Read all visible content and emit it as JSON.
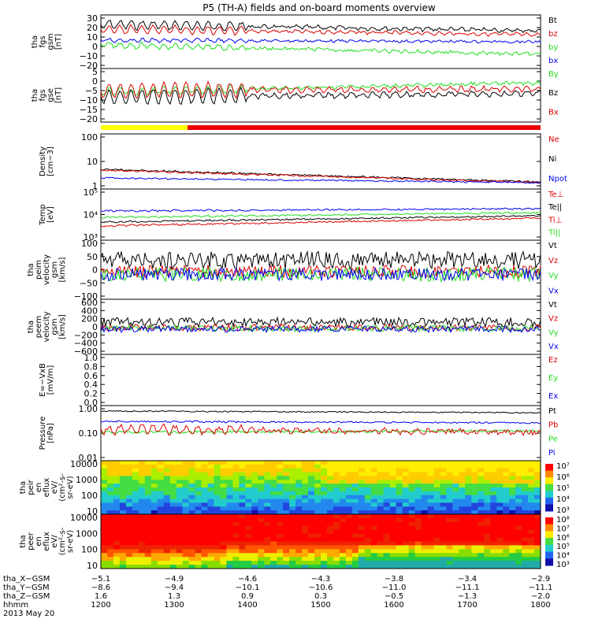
{
  "title": "P5 (TH-A) fields and on-board moments overview",
  "colors": {
    "black": "#000000",
    "red": "#dd0000",
    "green": "#22dd22",
    "blue": "#0000ee",
    "yellow": "#ffff00",
    "barRed": "#ee0000"
  },
  "chart_data": {
    "type": "line",
    "panels": [
      {
        "id": "fgs_gsm",
        "ylabel": [
          "tha",
          "fgs",
          "gsm",
          "[nT]"
        ],
        "ylim": [
          -30,
          30
        ],
        "yticks": [
          "30",
          "20",
          "10",
          "0",
          "−10",
          "−20"
        ],
        "series": [
          {
            "name": "Bt",
            "color": "red-hint",
            "base": 18
          },
          {
            "name": "bz",
            "base": 10
          },
          {
            "name": "by",
            "base": -6
          },
          {
            "name": "bx",
            "base": 3
          }
        ],
        "legend": [
          "Bt",
          "bz",
          "by",
          "bx"
        ]
      },
      {
        "id": "fgs_gse",
        "ylabel": [
          "tha",
          "fgs",
          "gse",
          "[nT]"
        ],
        "ylim": [
          -22,
          6
        ],
        "yticks": [
          "5",
          "0",
          "−5",
          "−10",
          "−15",
          "−20"
        ],
        "legend": [
          "By",
          "Bz",
          "Bx"
        ]
      },
      {
        "id": "density",
        "ylabel": [
          "Density",
          "[cm−3]"
        ],
        "scale": "log",
        "ylim": [
          0.1,
          300
        ],
        "yticks": [
          "100",
          "10",
          "1"
        ],
        "legend": [
          "Ne",
          "Ni",
          "Npot"
        ]
      },
      {
        "id": "temp",
        "ylabel": [
          "Temp",
          "[eV]"
        ],
        "scale": "log",
        "ylim": [
          100,
          100000
        ],
        "yticks": [
          "10⁵",
          "10⁴",
          "10³"
        ],
        "legend": [
          "Te⊥",
          "Te||",
          "Ti⊥",
          "Ti||"
        ]
      },
      {
        "id": "peim",
        "ylabel": [
          "tha",
          "peim",
          "velocity",
          "gsm",
          "[km/s]"
        ],
        "ylim": [
          -100,
          100
        ],
        "yticks": [
          "100",
          "50",
          "0",
          "−50",
          "−100"
        ],
        "legend": [
          "Vt",
          "Vz",
          "Vy",
          "Vx"
        ]
      },
      {
        "id": "peem",
        "ylabel": [
          "tha",
          "peem",
          "velocity",
          "gsm",
          "[km/s]"
        ],
        "ylim": [
          -600,
          600
        ],
        "yticks": [
          "600",
          "400",
          "200",
          "0",
          "−200",
          "−400",
          "−600"
        ],
        "legend": [
          "Vt",
          "Vz",
          "Vy",
          "Vx"
        ]
      },
      {
        "id": "efield",
        "ylabel": [
          "E=−VxB",
          "[mV/m]"
        ],
        "ylim": [
          0,
          1
        ],
        "yticks": [
          "1.0",
          "0.8",
          "0.6",
          "0.4",
          "0.2",
          "0.0"
        ],
        "legend": [
          "Ez",
          "Ey",
          "Ex"
        ]
      },
      {
        "id": "pressure",
        "ylabel": [
          "Pressure",
          "[nPa]"
        ],
        "scale": "log",
        "ylim": [
          0.01,
          1.2
        ],
        "yticks": [
          "1.00",
          "0.10",
          "0.01"
        ],
        "legend": [
          "Pt",
          "Pb",
          "Pe",
          "Pi"
        ]
      },
      {
        "id": "peir",
        "ylabel": [
          "tha",
          "peir",
          "en",
          "eflux",
          "eV/",
          "(cm²-s-",
          "sr-eV)"
        ],
        "type": "heatmap",
        "ylim": [
          10,
          20000
        ],
        "yticks": [
          "10000",
          "1000",
          "100",
          "10"
        ],
        "colorbar": [
          "10⁷",
          "10⁶",
          "10⁵",
          "10⁴",
          "10³"
        ]
      },
      {
        "id": "peer",
        "ylabel": [
          "tha",
          "peer",
          "en",
          "eflux",
          "eV/",
          "(cm²-s-",
          "sr-eV)"
        ],
        "type": "heatmap",
        "ylim": [
          10,
          20000
        ],
        "yticks": [
          "10000",
          "1000",
          "100",
          "10"
        ],
        "colorbar": [
          "10⁸",
          "10⁷",
          "10⁶",
          "10⁵",
          "10⁴",
          "10³"
        ]
      }
    ],
    "xaxis": {
      "rows": [
        {
          "label": "tha_X−GSM",
          "values": [
            "−5.1",
            "−4.9",
            "−4.6",
            "−4.3",
            "−3.8",
            "−3.4",
            "−2.9"
          ]
        },
        {
          "label": "tha_Y−GSM",
          "values": [
            "−8.6",
            "−9.4",
            "−10.1",
            "−10.6",
            "−11.0",
            "−11.1",
            "−11.1"
          ]
        },
        {
          "label": "tha_Z−GSM",
          "values": [
            "1.6",
            "1.3",
            "0.9",
            "0.3",
            "−0.5",
            "−1.3",
            "−2.0"
          ]
        },
        {
          "label": "hhmm",
          "values": [
            "1200",
            "1300",
            "1400",
            "1500",
            "1600",
            "1700",
            "1800"
          ]
        }
      ],
      "date": "2013 May 20"
    }
  },
  "legend_colors": {
    "fgs_gsm": [
      "black",
      "red",
      "green",
      "blue"
    ],
    "fgs_gse": [
      "green",
      "black",
      "red"
    ],
    "density": [
      "red",
      "black",
      "blue"
    ],
    "temp": [
      "red",
      "black",
      "red",
      "green"
    ],
    "peim": [
      "black",
      "red",
      "green",
      "blue"
    ],
    "peem": [
      "black",
      "red",
      "green",
      "blue"
    ],
    "efield": [
      "red",
      "green",
      "blue"
    ],
    "pressure": [
      "black",
      "red",
      "green",
      "blue"
    ]
  }
}
